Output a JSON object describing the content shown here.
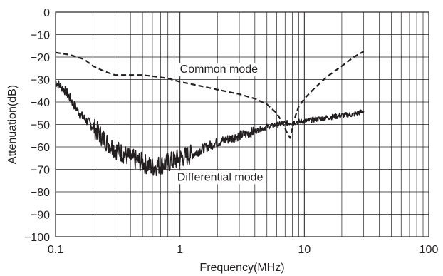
{
  "chart_data": {
    "type": "line",
    "title": "",
    "xlabel": "Frequency(MHz)",
    "ylabel": "Attenuation(dB)",
    "x_scale": "log",
    "xlim": [
      0.1,
      100
    ],
    "ylim": [
      -100,
      0
    ],
    "grid": true,
    "x_ticks": [
      {
        "value": 0.1,
        "label": "0.1"
      },
      {
        "value": 1,
        "label": "1"
      },
      {
        "value": 10,
        "label": "10"
      },
      {
        "value": 100,
        "label": "100"
      }
    ],
    "y_ticks": [
      {
        "value": 0,
        "label": "0"
      },
      {
        "value": -10,
        "label": "−10"
      },
      {
        "value": -20,
        "label": "−20"
      },
      {
        "value": -30,
        "label": "−30"
      },
      {
        "value": -40,
        "label": "−40"
      },
      {
        "value": -50,
        "label": "−50"
      },
      {
        "value": -60,
        "label": "−60"
      },
      {
        "value": -70,
        "label": "−70"
      },
      {
        "value": -80,
        "label": "−80"
      },
      {
        "value": -90,
        "label": "−90"
      },
      {
        "value": -100,
        "label": "−100"
      }
    ],
    "series": [
      {
        "name": "Common mode",
        "style": "dashed",
        "color": "#231f20",
        "x": [
          0.1,
          0.13,
          0.17,
          0.2,
          0.25,
          0.3,
          0.4,
          0.5,
          0.6,
          0.8,
          1.0,
          1.5,
          2.0,
          3.0,
          4.0,
          5.0,
          6.0,
          6.8,
          7.3,
          7.7,
          8.0,
          8.5,
          9.0,
          10,
          12,
          15,
          20,
          25,
          30
        ],
        "y": [
          -18,
          -19,
          -21,
          -24,
          -26.5,
          -28,
          -28,
          -28,
          -28.5,
          -29.5,
          -31,
          -33,
          -34.5,
          -36.5,
          -38.5,
          -41,
          -45,
          -50,
          -54,
          -56,
          -52,
          -46,
          -42,
          -38.5,
          -34,
          -29,
          -24,
          -20,
          -17.5
        ]
      },
      {
        "name": "Differential mode",
        "style": "solid",
        "noisy": true,
        "color": "#231f20",
        "x": [
          0.1,
          0.12,
          0.14,
          0.16,
          0.2,
          0.25,
          0.3,
          0.35,
          0.4,
          0.5,
          0.6,
          0.7,
          0.8,
          1.0,
          1.3,
          1.5,
          2.0,
          3.0,
          4.0,
          5.0,
          7.0,
          10,
          15,
          20,
          25,
          30
        ],
        "y": [
          -31,
          -35,
          -41,
          -46,
          -51,
          -57,
          -61,
          -63,
          -65,
          -67,
          -69,
          -68,
          -67,
          -65,
          -63,
          -61,
          -58,
          -55,
          -53,
          -51,
          -49.5,
          -48.5,
          -47,
          -46,
          -45.5,
          -44
        ]
      }
    ],
    "annotations": [
      {
        "text": "Common mode",
        "x": 1.0,
        "y": -27
      },
      {
        "text": "Differential mode",
        "x": 0.95,
        "y": -75
      }
    ]
  }
}
